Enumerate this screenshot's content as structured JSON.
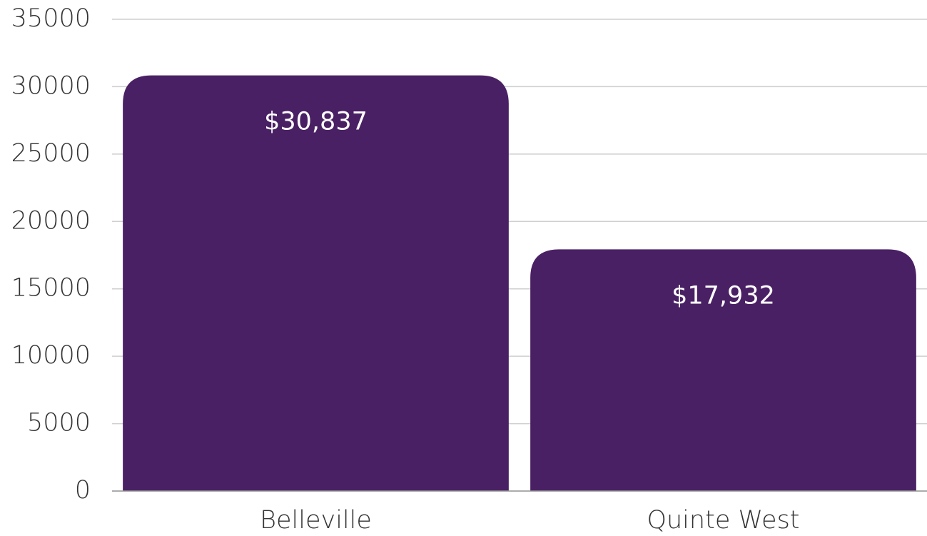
{
  "chart_data": {
    "type": "bar",
    "categories": [
      "Belleville",
      "Quinte West"
    ],
    "values": [
      30837,
      17932
    ],
    "value_labels": [
      "$30,837",
      "$17,932"
    ],
    "color": "#4a2064",
    "ylim": [
      0,
      35000
    ],
    "yticks": [
      0,
      5000,
      10000,
      15000,
      20000,
      25000,
      30000,
      35000
    ],
    "grid": true
  }
}
